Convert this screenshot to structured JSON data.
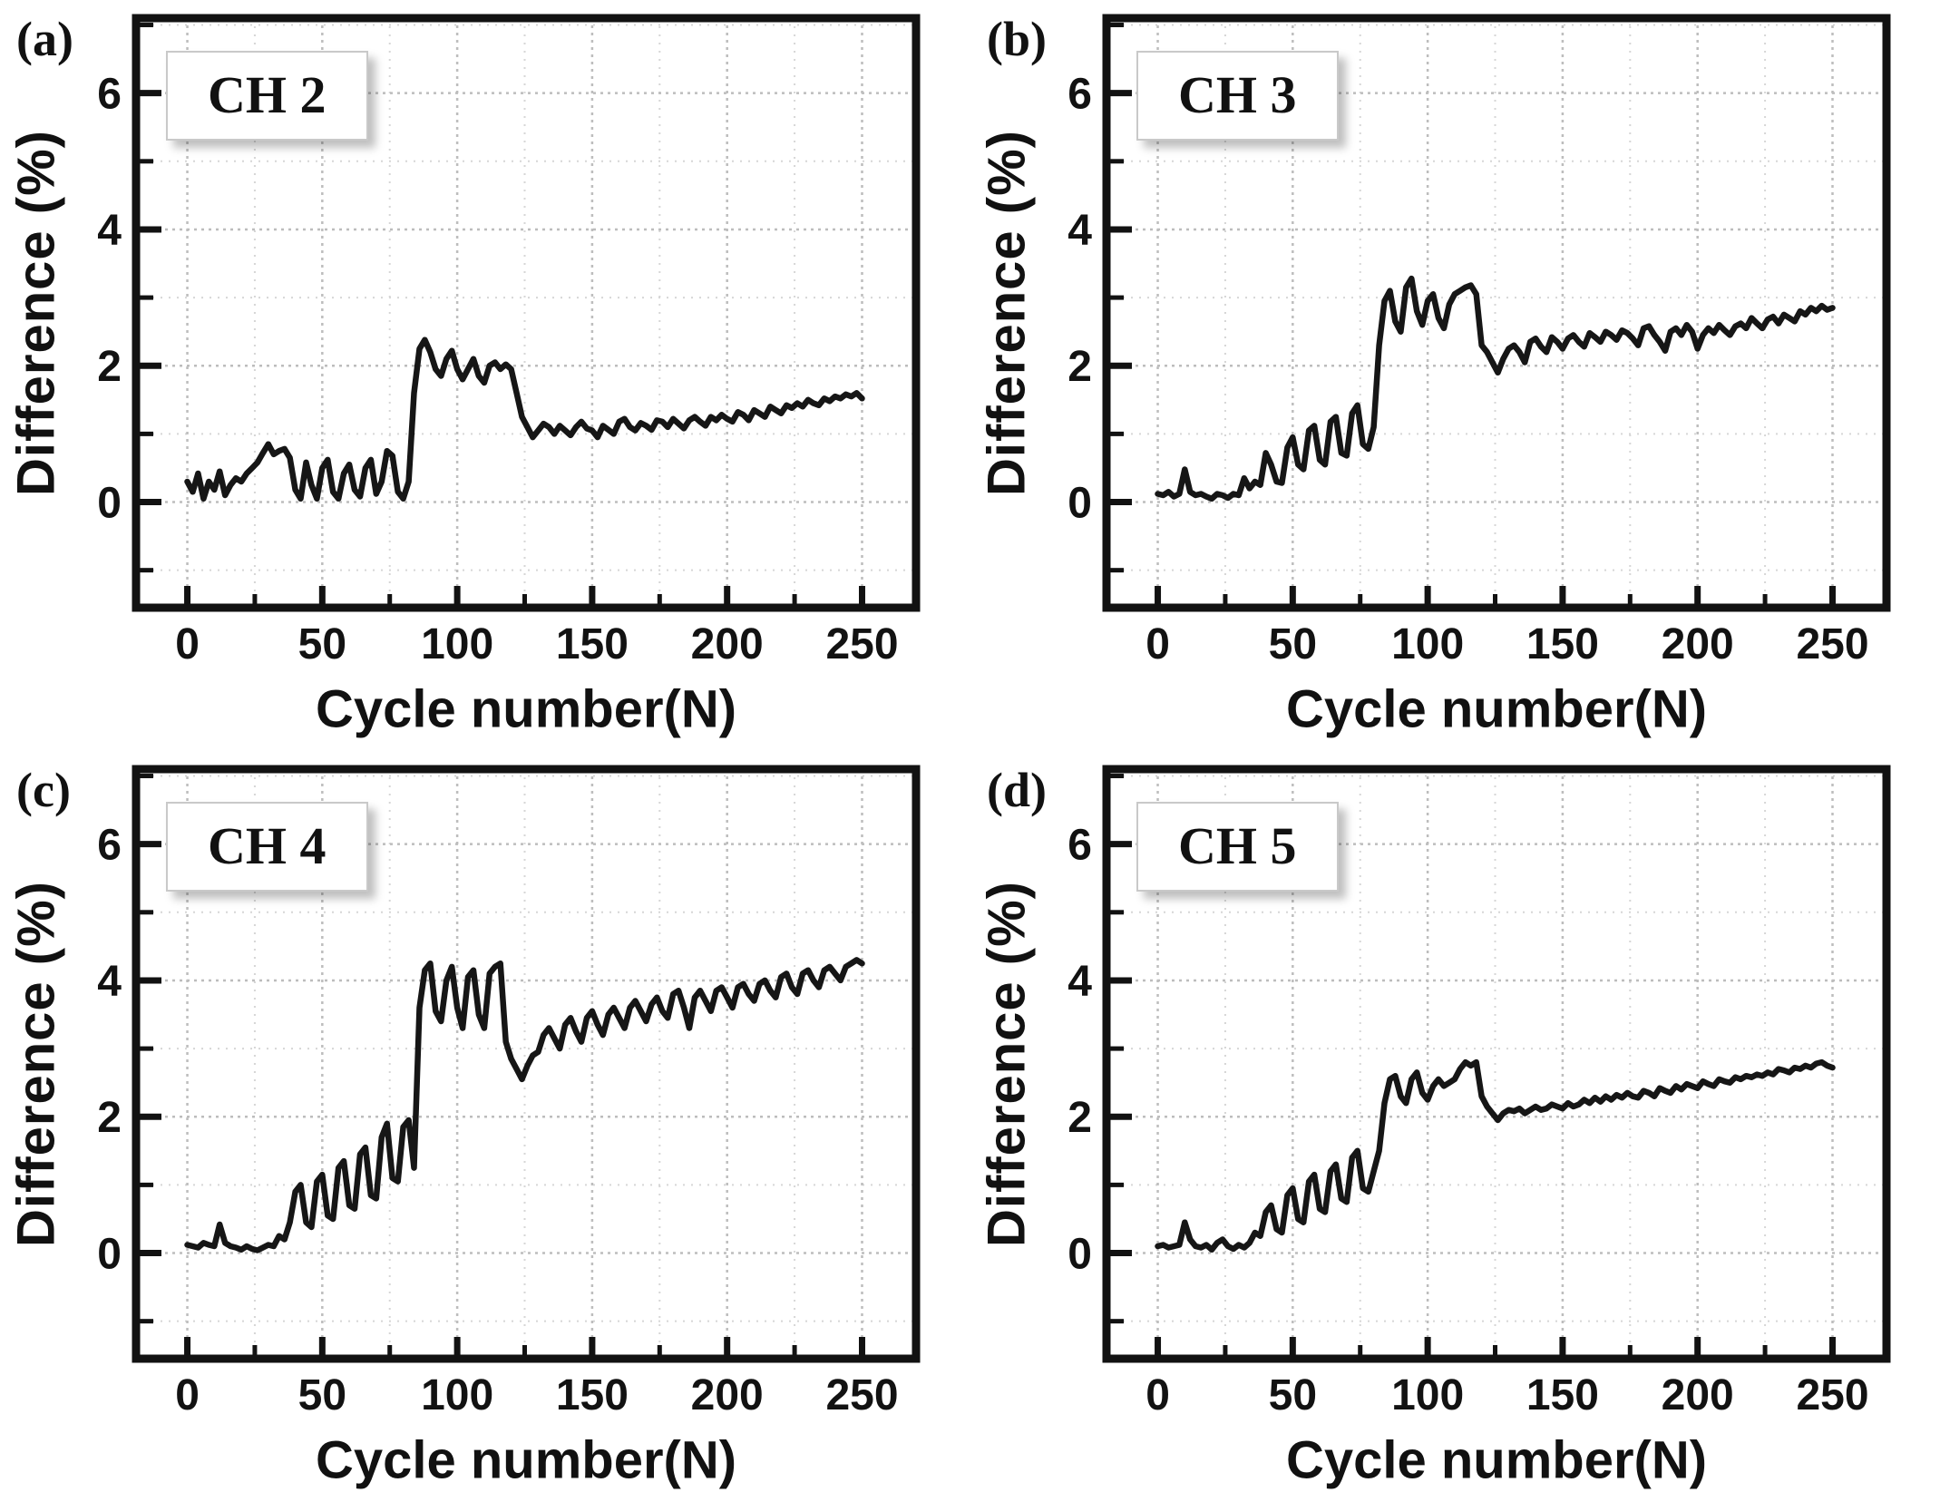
{
  "figure": {
    "background": "#ffffff"
  },
  "chart_data": [
    {
      "type": "line",
      "panel_label": "(a)",
      "series_label": "CH 2",
      "xlabel": "Cycle number(N)",
      "ylabel": "Difference (%)",
      "xlim": [
        -19,
        270
      ],
      "ylim": [
        -1.55,
        7.1
      ],
      "x_ticks_major": [
        0,
        50,
        100,
        150,
        200,
        250
      ],
      "x_ticks_minor": [
        25,
        75,
        125,
        175,
        225
      ],
      "y_ticks_major": [
        0,
        2,
        4,
        6
      ],
      "y_ticks_minor": [
        -1,
        1,
        3,
        5,
        7
      ],
      "grid": true,
      "line_color": "#161616",
      "x_start": 0,
      "x_step": 2,
      "values": [
        0.3,
        0.15,
        0.42,
        0.05,
        0.3,
        0.18,
        0.45,
        0.1,
        0.25,
        0.35,
        0.3,
        0.42,
        0.5,
        0.58,
        0.72,
        0.85,
        0.7,
        0.75,
        0.78,
        0.65,
        0.18,
        0.05,
        0.58,
        0.25,
        0.05,
        0.5,
        0.62,
        0.15,
        0.05,
        0.42,
        0.55,
        0.18,
        0.08,
        0.5,
        0.62,
        0.12,
        0.3,
        0.75,
        0.68,
        0.15,
        0.05,
        0.3,
        1.6,
        2.25,
        2.38,
        2.2,
        1.95,
        1.85,
        2.1,
        2.22,
        1.95,
        1.8,
        1.95,
        2.1,
        1.85,
        1.75,
        2.0,
        2.05,
        1.95,
        2.02,
        1.95,
        1.6,
        1.25,
        1.1,
        0.95,
        1.05,
        1.15,
        1.1,
        1.0,
        1.12,
        1.05,
        0.98,
        1.1,
        1.18,
        1.08,
        1.05,
        0.95,
        1.12,
        1.06,
        1.0,
        1.18,
        1.22,
        1.1,
        1.05,
        1.16,
        1.12,
        1.06,
        1.2,
        1.18,
        1.1,
        1.22,
        1.15,
        1.08,
        1.2,
        1.25,
        1.18,
        1.12,
        1.25,
        1.2,
        1.28,
        1.22,
        1.18,
        1.32,
        1.28,
        1.2,
        1.35,
        1.3,
        1.25,
        1.4,
        1.35,
        1.3,
        1.42,
        1.38,
        1.45,
        1.4,
        1.5,
        1.45,
        1.42,
        1.52,
        1.48,
        1.55,
        1.52,
        1.58,
        1.55,
        1.6,
        1.52
      ]
    },
    {
      "type": "line",
      "panel_label": "(b)",
      "series_label": "CH 3",
      "xlabel": "Cycle number(N)",
      "ylabel": "Difference (%)",
      "xlim": [
        -19,
        270
      ],
      "ylim": [
        -1.55,
        7.1
      ],
      "x_ticks_major": [
        0,
        50,
        100,
        150,
        200,
        250
      ],
      "x_ticks_minor": [
        25,
        75,
        125,
        175,
        225
      ],
      "y_ticks_major": [
        0,
        2,
        4,
        6
      ],
      "y_ticks_minor": [
        -1,
        1,
        3,
        5,
        7
      ],
      "grid": true,
      "line_color": "#161616",
      "x_start": 0,
      "x_step": 2,
      "values": [
        0.12,
        0.1,
        0.15,
        0.08,
        0.12,
        0.48,
        0.15,
        0.1,
        0.12,
        0.08,
        0.05,
        0.12,
        0.1,
        0.06,
        0.12,
        0.1,
        0.35,
        0.2,
        0.3,
        0.25,
        0.72,
        0.55,
        0.3,
        0.28,
        0.8,
        0.95,
        0.55,
        0.48,
        1.05,
        1.12,
        0.62,
        0.55,
        1.18,
        1.25,
        0.72,
        0.68,
        1.3,
        1.42,
        0.85,
        0.78,
        1.1,
        2.3,
        2.95,
        3.1,
        2.65,
        2.5,
        3.15,
        3.28,
        2.8,
        2.6,
        2.95,
        3.05,
        2.7,
        2.55,
        2.9,
        3.05,
        3.1,
        3.15,
        3.18,
        3.05,
        2.3,
        2.2,
        2.05,
        1.9,
        2.1,
        2.25,
        2.3,
        2.2,
        2.05,
        2.35,
        2.4,
        2.28,
        2.2,
        2.42,
        2.35,
        2.25,
        2.4,
        2.45,
        2.35,
        2.28,
        2.48,
        2.42,
        2.35,
        2.5,
        2.45,
        2.38,
        2.52,
        2.48,
        2.4,
        2.3,
        2.55,
        2.58,
        2.45,
        2.35,
        2.22,
        2.5,
        2.55,
        2.45,
        2.6,
        2.5,
        2.25,
        2.45,
        2.55,
        2.48,
        2.6,
        2.52,
        2.45,
        2.58,
        2.62,
        2.55,
        2.7,
        2.62,
        2.55,
        2.68,
        2.72,
        2.62,
        2.75,
        2.7,
        2.65,
        2.8,
        2.75,
        2.85,
        2.8,
        2.88,
        2.82,
        2.85
      ]
    },
    {
      "type": "line",
      "panel_label": "(c)",
      "series_label": "CH 4",
      "xlabel": "Cycle number(N)",
      "ylabel": "Difference (%)",
      "xlim": [
        -19,
        270
      ],
      "ylim": [
        -1.55,
        7.1
      ],
      "x_ticks_major": [
        0,
        50,
        100,
        150,
        200,
        250
      ],
      "x_ticks_minor": [
        25,
        75,
        125,
        175,
        225
      ],
      "y_ticks_major": [
        0,
        2,
        4,
        6
      ],
      "y_ticks_minor": [
        -1,
        1,
        3,
        5,
        7
      ],
      "grid": true,
      "line_color": "#161616",
      "x_start": 0,
      "x_step": 2,
      "values": [
        0.12,
        0.1,
        0.08,
        0.15,
        0.12,
        0.1,
        0.42,
        0.15,
        0.1,
        0.08,
        0.05,
        0.1,
        0.06,
        0.04,
        0.08,
        0.12,
        0.1,
        0.25,
        0.2,
        0.45,
        0.9,
        1.0,
        0.45,
        0.38,
        1.05,
        1.15,
        0.55,
        0.5,
        1.25,
        1.35,
        0.7,
        0.65,
        1.45,
        1.55,
        0.85,
        0.8,
        1.7,
        1.9,
        1.1,
        1.05,
        1.85,
        1.95,
        1.25,
        3.6,
        4.15,
        4.25,
        3.55,
        3.4,
        4.0,
        4.2,
        3.6,
        3.3,
        4.05,
        4.15,
        3.5,
        3.3,
        4.1,
        4.2,
        4.25,
        3.1,
        2.85,
        2.7,
        2.55,
        2.75,
        2.9,
        2.95,
        3.2,
        3.3,
        3.15,
        3.0,
        3.35,
        3.45,
        3.25,
        3.1,
        3.45,
        3.55,
        3.35,
        3.2,
        3.5,
        3.6,
        3.45,
        3.3,
        3.6,
        3.7,
        3.55,
        3.4,
        3.65,
        3.75,
        3.55,
        3.45,
        3.8,
        3.85,
        3.6,
        3.3,
        3.75,
        3.85,
        3.7,
        3.55,
        3.85,
        3.9,
        3.75,
        3.6,
        3.9,
        3.95,
        3.8,
        3.7,
        3.95,
        4.0,
        3.85,
        3.75,
        4.05,
        4.1,
        3.9,
        3.8,
        4.1,
        4.15,
        4.0,
        3.9,
        4.15,
        4.2,
        4.1,
        4.0,
        4.2,
        4.25,
        4.3,
        4.25
      ]
    },
    {
      "type": "line",
      "panel_label": "(d)",
      "series_label": "CH 5",
      "xlabel": "Cycle number(N)",
      "ylabel": "Difference (%)",
      "xlim": [
        -19,
        270
      ],
      "ylim": [
        -1.55,
        7.1
      ],
      "x_ticks_major": [
        0,
        50,
        100,
        150,
        200,
        250
      ],
      "x_ticks_minor": [
        25,
        75,
        125,
        175,
        225
      ],
      "y_ticks_major": [
        0,
        2,
        4,
        6
      ],
      "y_ticks_minor": [
        -1,
        1,
        3,
        5,
        7
      ],
      "grid": true,
      "line_color": "#161616",
      "x_start": 0,
      "x_step": 2,
      "values": [
        0.1,
        0.12,
        0.08,
        0.1,
        0.12,
        0.45,
        0.2,
        0.1,
        0.08,
        0.12,
        0.05,
        0.15,
        0.2,
        0.1,
        0.06,
        0.12,
        0.08,
        0.15,
        0.3,
        0.25,
        0.6,
        0.7,
        0.35,
        0.3,
        0.85,
        0.95,
        0.5,
        0.45,
        1.05,
        1.15,
        0.65,
        0.6,
        1.2,
        1.3,
        0.8,
        0.75,
        1.4,
        1.5,
        0.95,
        0.9,
        1.2,
        1.5,
        2.2,
        2.55,
        2.6,
        2.3,
        2.2,
        2.55,
        2.65,
        2.35,
        2.25,
        2.45,
        2.55,
        2.45,
        2.5,
        2.55,
        2.7,
        2.8,
        2.75,
        2.8,
        2.3,
        2.15,
        2.05,
        1.95,
        2.05,
        2.1,
        2.08,
        2.12,
        2.05,
        2.1,
        2.15,
        2.1,
        2.12,
        2.18,
        2.15,
        2.12,
        2.2,
        2.15,
        2.18,
        2.25,
        2.2,
        2.28,
        2.22,
        2.3,
        2.25,
        2.32,
        2.28,
        2.35,
        2.3,
        2.28,
        2.38,
        2.35,
        2.3,
        2.42,
        2.38,
        2.35,
        2.45,
        2.4,
        2.48,
        2.45,
        2.42,
        2.52,
        2.48,
        2.45,
        2.55,
        2.52,
        2.5,
        2.58,
        2.55,
        2.6,
        2.58,
        2.62,
        2.6,
        2.65,
        2.62,
        2.7,
        2.68,
        2.65,
        2.72,
        2.7,
        2.75,
        2.72,
        2.78,
        2.8,
        2.75,
        2.72
      ]
    }
  ]
}
